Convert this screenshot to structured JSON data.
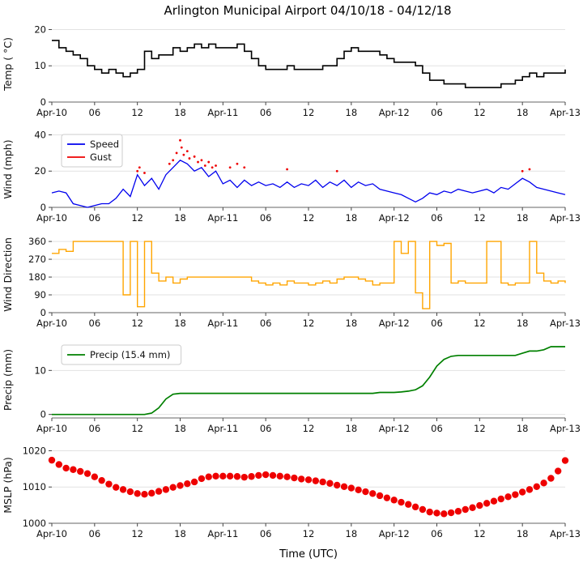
{
  "title": "Arlington Municipal Airport 04/10/18 - 04/12/18",
  "xlabel": "Time (UTC)",
  "axis": {
    "hour_max": 72,
    "hours": [
      0,
      6,
      12,
      18,
      24,
      30,
      36,
      42,
      48,
      54,
      60,
      66,
      72
    ],
    "labels": [
      "Apr-10",
      "06",
      "12",
      "18",
      "Apr-11",
      "06",
      "12",
      "18",
      "Apr-12",
      "06",
      "12",
      "18",
      "Apr-13"
    ]
  },
  "chart_data": [
    {
      "type": "line",
      "ylabel": "Temp ( °C)",
      "ylim": [
        0,
        21
      ],
      "yticks": [
        0,
        10,
        20
      ],
      "series": [
        {
          "name": "temperature",
          "type": "step",
          "color": "#000000",
          "width": 1.6,
          "y": [
            17,
            15,
            14,
            13,
            12,
            10,
            9,
            8,
            9,
            8,
            7,
            8,
            9,
            14,
            12,
            13,
            13,
            15,
            14,
            15,
            16,
            15,
            16,
            15,
            15,
            15,
            16,
            14,
            12,
            10,
            9,
            9,
            9,
            10,
            9,
            9,
            9,
            9,
            10,
            10,
            12,
            14,
            15,
            14,
            14,
            14,
            13,
            12,
            11,
            11,
            11,
            10,
            8,
            6,
            6,
            5,
            5,
            5,
            4,
            4,
            4,
            4,
            4,
            5,
            5,
            6,
            7,
            8,
            7,
            8,
            8,
            8,
            9
          ]
        }
      ]
    },
    {
      "type": "line",
      "ylabel": "Wind (mph)",
      "ylim": [
        0,
        42
      ],
      "yticks": [
        0,
        20,
        40
      ],
      "series": [
        {
          "name": "wind-speed",
          "label": "Speed",
          "type": "line",
          "color": "#0000ee",
          "width": 1.3,
          "y": [
            8,
            9,
            8,
            2,
            1,
            0,
            1,
            2,
            2,
            5,
            10,
            6,
            18,
            12,
            16,
            10,
            18,
            22,
            26,
            24,
            20,
            22,
            17,
            20,
            13,
            15,
            11,
            15,
            12,
            14,
            12,
            13,
            11,
            14,
            11,
            13,
            12,
            15,
            11,
            14,
            12,
            15,
            11,
            14,
            12,
            13,
            10,
            9,
            8,
            7,
            5,
            3,
            5,
            8,
            7,
            9,
            8,
            10,
            9,
            8,
            9,
            10,
            8,
            11,
            10,
            13,
            16,
            14,
            11,
            10,
            9,
            8,
            7
          ]
        },
        {
          "name": "wind-gust",
          "label": "Gust",
          "type": "scatter",
          "color": "#ee0000",
          "size": 1.4,
          "x": [
            12,
            12.3,
            13,
            16.5,
            17,
            17.5,
            18,
            18.2,
            18.5,
            19,
            19.3,
            20,
            20.5,
            21,
            21.5,
            22,
            22.5,
            23,
            25,
            26,
            27,
            33,
            40,
            66,
            67
          ],
          "y": [
            20,
            22,
            19,
            24,
            26,
            30,
            37,
            33,
            29,
            31,
            27,
            28,
            25,
            26,
            23,
            25,
            22,
            23,
            22,
            24,
            22,
            21,
            20,
            20,
            21
          ]
        }
      ]
    },
    {
      "type": "line",
      "ylabel": "Wind Direction",
      "ylim": [
        0,
        385
      ],
      "yticks": [
        0,
        90,
        180,
        270,
        360
      ],
      "series": [
        {
          "name": "wind-direction",
          "type": "step",
          "color": "#ffa500",
          "width": 1.4,
          "y": [
            300,
            320,
            310,
            360,
            360,
            360,
            360,
            360,
            360,
            360,
            90,
            360,
            30,
            360,
            200,
            160,
            180,
            150,
            170,
            180,
            180,
            180,
            180,
            180,
            180,
            180,
            180,
            180,
            160,
            150,
            140,
            150,
            140,
            160,
            150,
            150,
            140,
            150,
            160,
            150,
            170,
            180,
            180,
            170,
            160,
            140,
            150,
            150,
            360,
            300,
            360,
            100,
            20,
            360,
            340,
            350,
            150,
            160,
            150,
            150,
            150,
            360,
            360,
            150,
            140,
            150,
            150,
            360,
            200,
            160,
            150,
            160,
            150
          ]
        }
      ]
    },
    {
      "type": "line",
      "ylabel": "Precip (mm)",
      "ylim": [
        -0.8,
        16.5
      ],
      "yticks": [
        0,
        10
      ],
      "series": [
        {
          "name": "precip-accum",
          "label": "Precip (15.4 mm)",
          "type": "line",
          "color": "#008000",
          "width": 1.7,
          "y": [
            0,
            0,
            0,
            0,
            0,
            0,
            0,
            0,
            0,
            0,
            0,
            0,
            0,
            0,
            0.3,
            1.5,
            3.5,
            4.6,
            4.8,
            4.8,
            4.8,
            4.8,
            4.8,
            4.8,
            4.8,
            4.8,
            4.8,
            4.8,
            4.8,
            4.8,
            4.8,
            4.8,
            4.8,
            4.8,
            4.8,
            4.8,
            4.8,
            4.8,
            4.8,
            4.8,
            4.8,
            4.8,
            4.8,
            4.8,
            4.8,
            4.8,
            5.0,
            5.0,
            5.0,
            5.1,
            5.3,
            5.6,
            6.5,
            8.5,
            11.0,
            12.5,
            13.2,
            13.4,
            13.4,
            13.4,
            13.4,
            13.4,
            13.4,
            13.4,
            13.4,
            13.4,
            13.9,
            14.4,
            14.4,
            14.7,
            15.4,
            15.4,
            15.4
          ]
        }
      ]
    },
    {
      "type": "scatter",
      "ylabel": "MSLP (hPa)",
      "ylim": [
        1000,
        1021
      ],
      "yticks": [
        1000,
        1010,
        1020
      ],
      "series": [
        {
          "name": "mslp",
          "type": "scatter",
          "color": "#ee0000",
          "size": 4.2,
          "y": [
            1017.4,
            1016.2,
            1015.2,
            1014.8,
            1014.3,
            1013.7,
            1012.8,
            1011.8,
            1010.8,
            1009.9,
            1009.3,
            1008.7,
            1008.2,
            1008.0,
            1008.3,
            1008.8,
            1009.3,
            1009.9,
            1010.4,
            1010.9,
            1011.4,
            1012.3,
            1012.8,
            1013.0,
            1013.0,
            1013.0,
            1012.9,
            1012.7,
            1012.9,
            1013.2,
            1013.4,
            1013.2,
            1013.0,
            1012.8,
            1012.5,
            1012.2,
            1012.0,
            1011.7,
            1011.4,
            1011.0,
            1010.5,
            1010.1,
            1009.7,
            1009.2,
            1008.7,
            1008.2,
            1007.6,
            1007.0,
            1006.4,
            1005.8,
            1005.2,
            1004.5,
            1003.8,
            1003.1,
            1002.8,
            1002.6,
            1002.9,
            1003.3,
            1003.8,
            1004.3,
            1004.9,
            1005.5,
            1006.1,
            1006.7,
            1007.3,
            1007.9,
            1008.6,
            1009.3,
            1010.1,
            1011.1,
            1012.4,
            1014.4,
            1017.3
          ]
        }
      ]
    }
  ]
}
